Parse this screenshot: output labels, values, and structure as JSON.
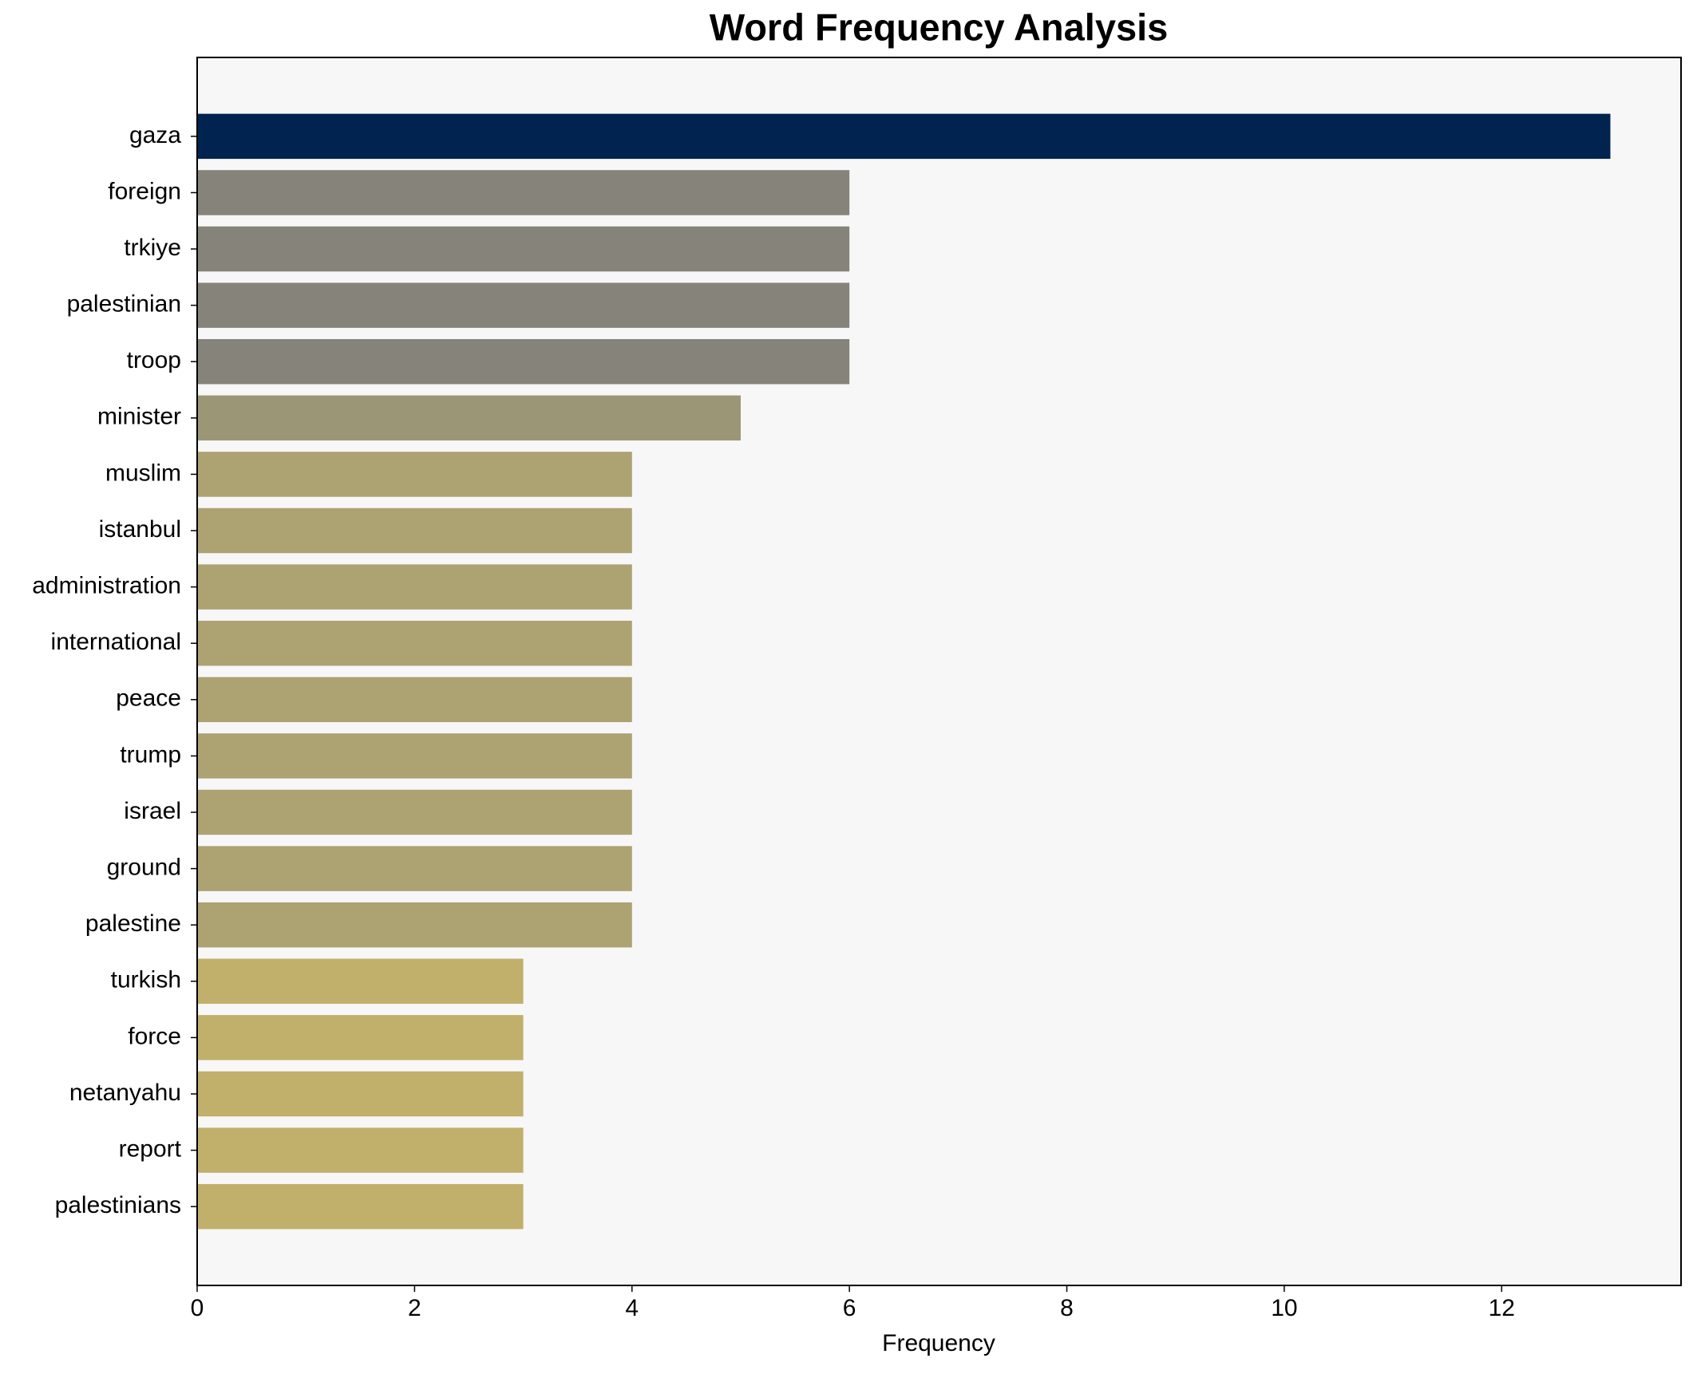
{
  "chart_data": {
    "type": "barh",
    "title": "Word Frequency Analysis",
    "x_label": "Frequency",
    "categories": [
      "gaza",
      "foreign",
      "trkiye",
      "palestinian",
      "troop",
      "minister",
      "muslim",
      "istanbul",
      "administration",
      "international",
      "peace",
      "trump",
      "israel",
      "ground",
      "palestine",
      "turkish",
      "force",
      "netanyahu",
      "report",
      "palestinians"
    ],
    "values": [
      13,
      6,
      6,
      6,
      6,
      5,
      4,
      4,
      4,
      4,
      4,
      4,
      4,
      4,
      4,
      3,
      3,
      3,
      3,
      3
    ],
    "colors": [
      "#002350",
      "#86837a",
      "#86837a",
      "#86837a",
      "#86837a",
      "#9b9675",
      "#ada272",
      "#ada272",
      "#ada272",
      "#ada272",
      "#ada272",
      "#ada272",
      "#ada272",
      "#ada272",
      "#ada272",
      "#c1b06b",
      "#c1b06b",
      "#c1b06b",
      "#c1b06b",
      "#c1b06b"
    ],
    "xlim": [
      0,
      13.65
    ],
    "xticks": [
      0,
      2,
      4,
      6,
      8,
      10,
      12
    ],
    "background": "#f7f7f7"
  }
}
